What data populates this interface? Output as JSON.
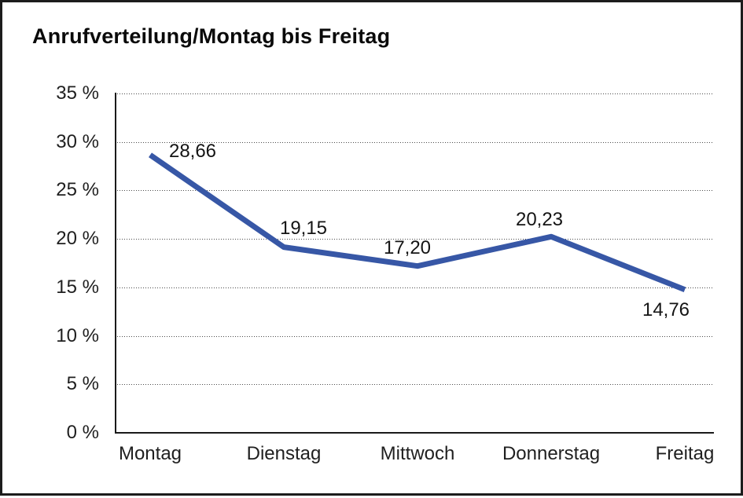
{
  "title": "Anrufverteilung/Montag bis Freitag",
  "frame": {
    "background_color": "#ffffff",
    "border_color": "#1c1c1c"
  },
  "chart_data": {
    "type": "line",
    "title": "Anrufverteilung/Montag bis Freitag",
    "categories": [
      "Montag",
      "Dienstag",
      "Mittwoch",
      "Donnerstag",
      "Freitag"
    ],
    "values": [
      28.66,
      19.15,
      17.2,
      20.23,
      14.76
    ],
    "value_labels": [
      "28,66",
      "19,15",
      "17,20",
      "20,23",
      "14,76"
    ],
    "series_name": "Anrufverteilung",
    "xlabel": "",
    "ylabel": "",
    "ylim": [
      0,
      35
    ],
    "ytick_step": 5,
    "ytick_labels": [
      "0 %",
      "5 %",
      "10 %",
      "15 %",
      "20 %",
      "25 %",
      "30 %",
      "35 %"
    ],
    "grid": "horizontal-dotted",
    "legend_position": "none",
    "line_color": "#3757A6",
    "label_color": "#141414"
  }
}
